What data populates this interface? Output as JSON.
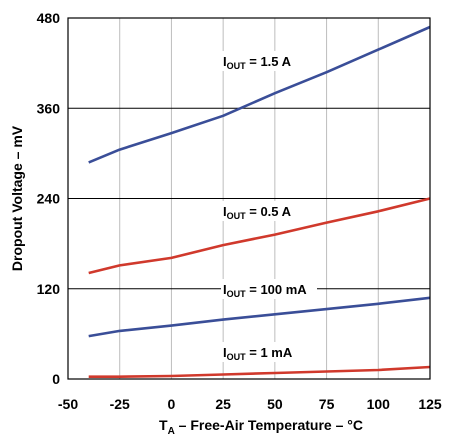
{
  "chart_data": {
    "type": "line",
    "xlabel_main": "T",
    "xlabel_sub": "A",
    "xlabel_rest": " – Free-Air Temperature – °C",
    "ylabel": "Dropout Voltage – mV",
    "xlim": [
      -50,
      125
    ],
    "ylim": [
      0,
      480
    ],
    "x_ticks": [
      -50,
      -25,
      0,
      25,
      50,
      75,
      100,
      125
    ],
    "y_ticks": [
      0,
      120,
      240,
      360,
      480
    ],
    "grid": true,
    "series": [
      {
        "name": "IOUT = 1.5 A",
        "label_main": "I",
        "label_sub": "OUT",
        "label_rest": " = 1.5 A",
        "color": "#3a4e98",
        "x": [
          -40,
          -25,
          0,
          25,
          50,
          75,
          100,
          125
        ],
        "y": [
          288,
          305,
          327,
          350,
          380,
          408,
          438,
          468
        ]
      },
      {
        "name": "IOUT = 0.5 A",
        "label_main": "I",
        "label_sub": "OUT",
        "label_rest": " = 0.5 A",
        "color": "#d0392c",
        "x": [
          -40,
          -25,
          0,
          25,
          50,
          75,
          100,
          125
        ],
        "y": [
          141,
          151,
          161,
          178,
          192,
          208,
          223,
          240
        ]
      },
      {
        "name": "IOUT = 100 mA",
        "label_main": "I",
        "label_sub": "OUT",
        "label_rest": " = 100 mA",
        "color": "#3a4e98",
        "x": [
          -40,
          -25,
          0,
          25,
          50,
          75,
          100,
          125
        ],
        "y": [
          57,
          64,
          71,
          79,
          86,
          93,
          100,
          108
        ]
      },
      {
        "name": "IOUT = 1 mA",
        "label_main": "I",
        "label_sub": "OUT",
        "label_rest": " = 1 mA",
        "color": "#d0392c",
        "x": [
          -40,
          -25,
          0,
          25,
          50,
          75,
          100,
          125
        ],
        "y": [
          3,
          3,
          4,
          6,
          8,
          10,
          12,
          16
        ]
      }
    ]
  }
}
